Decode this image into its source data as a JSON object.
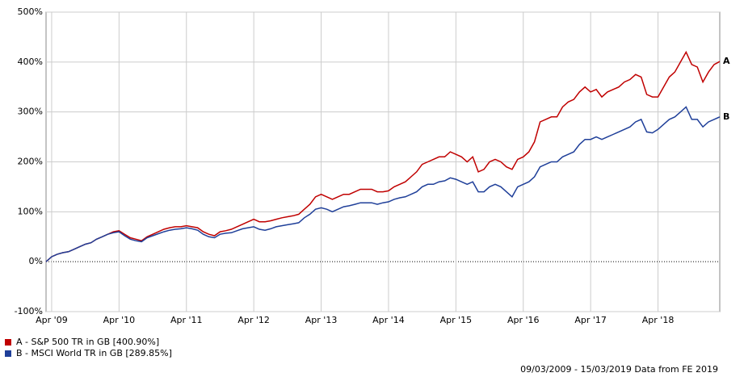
{
  "chart_data": {
    "type": "line",
    "categories": [
      null,
      "Apr '09",
      null,
      null,
      null,
      null,
      null,
      null,
      null,
      null,
      null,
      null,
      null,
      "Apr '10",
      null,
      null,
      null,
      null,
      null,
      null,
      null,
      null,
      null,
      null,
      null,
      "Apr '11",
      null,
      null,
      null,
      null,
      null,
      null,
      null,
      null,
      null,
      null,
      null,
      "Apr '12",
      null,
      null,
      null,
      null,
      null,
      null,
      null,
      null,
      null,
      null,
      null,
      "Apr '13",
      null,
      null,
      null,
      null,
      null,
      null,
      null,
      null,
      null,
      null,
      null,
      "Apr '14",
      null,
      null,
      null,
      null,
      null,
      null,
      null,
      null,
      null,
      null,
      null,
      "Apr '15",
      null,
      null,
      null,
      null,
      null,
      null,
      null,
      null,
      null,
      null,
      null,
      "Apr '16",
      null,
      null,
      null,
      null,
      null,
      null,
      null,
      null,
      null,
      null,
      null,
      "Apr '17",
      null,
      null,
      null,
      null,
      null,
      null,
      null,
      null,
      null,
      null,
      null,
      "Apr '18",
      null,
      null,
      null,
      null,
      null,
      null,
      null,
      null,
      null,
      null,
      null
    ],
    "series": [
      {
        "name": "A - S&P 500 TR in GB [400.90%]",
        "end_label": "A",
        "color": "#c00000",
        "values": [
          0,
          10,
          15,
          18,
          20,
          25,
          30,
          35,
          38,
          45,
          50,
          55,
          60,
          62,
          55,
          48,
          45,
          42,
          50,
          55,
          60,
          65,
          68,
          70,
          70,
          72,
          70,
          68,
          60,
          55,
          52,
          60,
          62,
          65,
          70,
          75,
          80,
          85,
          80,
          80,
          82,
          85,
          88,
          90,
          92,
          95,
          105,
          115,
          130,
          135,
          130,
          125,
          130,
          135,
          135,
          140,
          145,
          145,
          145,
          140,
          140,
          142,
          150,
          155,
          160,
          170,
          180,
          195,
          200,
          205,
          210,
          210,
          220,
          215,
          210,
          200,
          210,
          180,
          185,
          200,
          205,
          200,
          190,
          185,
          205,
          210,
          220,
          240,
          280,
          285,
          290,
          290,
          310,
          320,
          325,
          340,
          350,
          340,
          345,
          330,
          340,
          345,
          350,
          360,
          365,
          375,
          370,
          335,
          330,
          330,
          350,
          370,
          380,
          400,
          420,
          395,
          390,
          360,
          380,
          395,
          401
        ]
      },
      {
        "name": "B - MSCI World TR in GB [289.85%]",
        "end_label": "B",
        "color": "#1f3f99",
        "values": [
          0,
          10,
          15,
          18,
          20,
          25,
          30,
          35,
          38,
          45,
          50,
          55,
          58,
          60,
          52,
          45,
          42,
          40,
          48,
          52,
          56,
          60,
          63,
          65,
          66,
          68,
          66,
          63,
          55,
          50,
          48,
          55,
          57,
          58,
          62,
          66,
          68,
          70,
          65,
          63,
          66,
          70,
          72,
          74,
          76,
          78,
          88,
          95,
          105,
          108,
          105,
          100,
          105,
          110,
          112,
          115,
          118,
          118,
          118,
          115,
          118,
          120,
          125,
          128,
          130,
          135,
          140,
          150,
          155,
          155,
          160,
          162,
          168,
          165,
          160,
          155,
          160,
          140,
          140,
          150,
          155,
          150,
          140,
          130,
          150,
          155,
          160,
          170,
          190,
          195,
          200,
          200,
          210,
          215,
          220,
          235,
          245,
          245,
          250,
          245,
          250,
          255,
          260,
          265,
          270,
          280,
          285,
          260,
          258,
          265,
          275,
          285,
          290,
          300,
          310,
          285,
          285,
          270,
          280,
          285,
          290
        ]
      }
    ],
    "ylim": [
      -100,
      500
    ],
    "yticks": [
      {
        "value": -100,
        "label": "-100%"
      },
      {
        "value": 0,
        "label": "0%"
      },
      {
        "value": 100,
        "label": "100%"
      },
      {
        "value": 200,
        "label": "200%"
      },
      {
        "value": 300,
        "label": "300%"
      },
      {
        "value": 400,
        "label": "400%"
      },
      {
        "value": 500,
        "label": "500%"
      }
    ],
    "grid": true,
    "footer": "09/03/2009 - 15/03/2019 Data from FE 2019"
  }
}
